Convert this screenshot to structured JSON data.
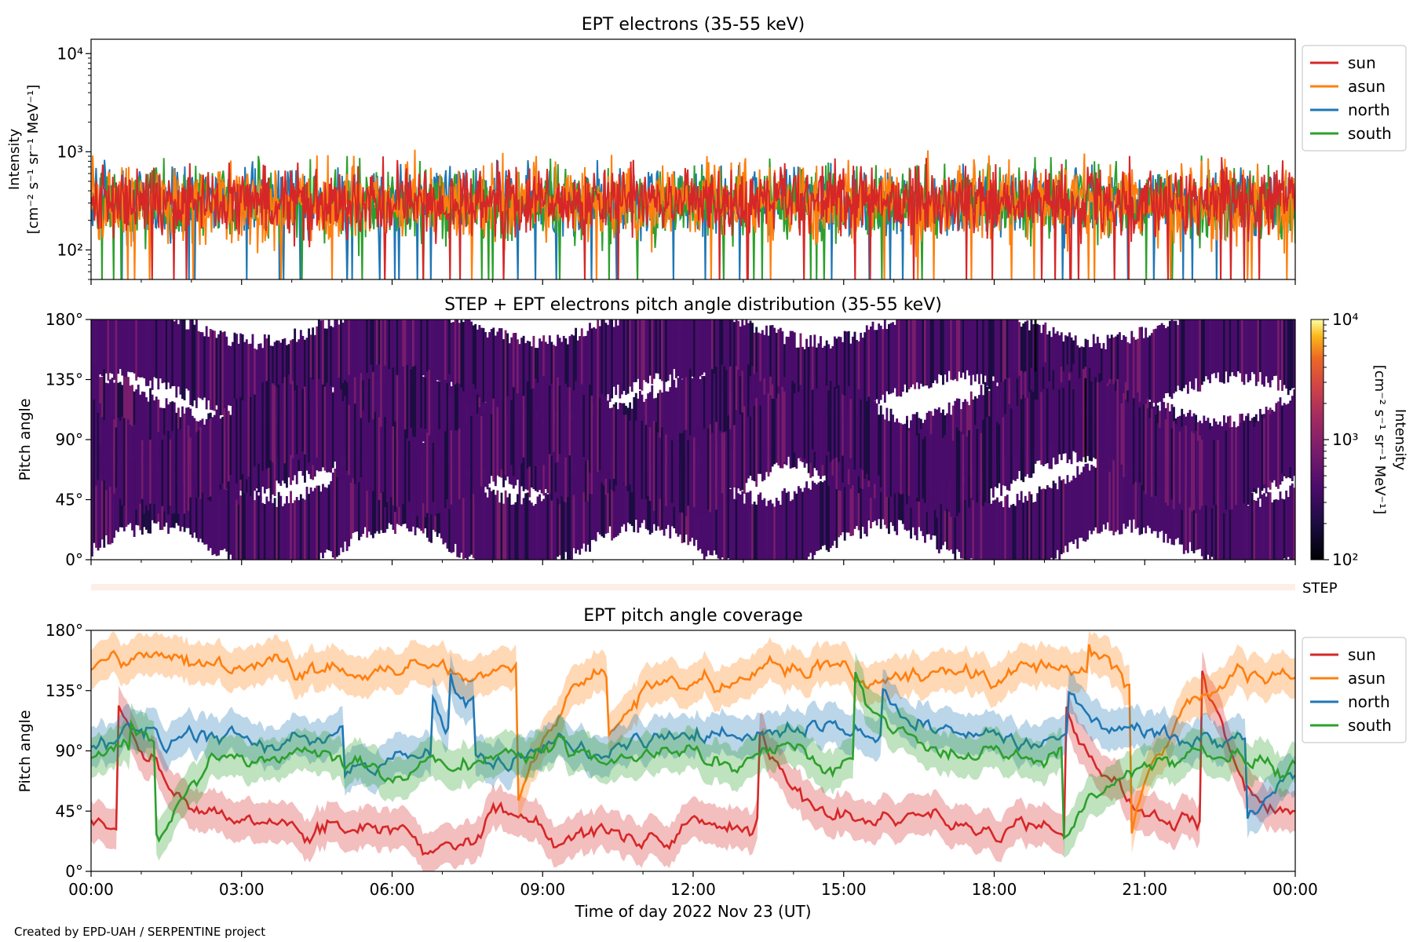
{
  "credit": "Created by EPD-UAH / SERPENTINE project",
  "colors": {
    "sun": "#d62728",
    "asun": "#ff7f0e",
    "north": "#1f77b4",
    "south": "#2ca02c"
  },
  "chart_data": [
    {
      "type": "line",
      "title": "EPT electrons (35-55 keV)",
      "ylabel_lines": [
        "Intensity",
        "[cm⁻² s⁻¹ sr⁻¹ MeV⁻¹]"
      ],
      "yscale": "log",
      "ylim": [
        50,
        14000
      ],
      "yticks": [
        {
          "value": 100,
          "label": "10²"
        },
        {
          "value": 1000,
          "label": "10³"
        },
        {
          "value": 10000,
          "label": "10⁴"
        }
      ],
      "xlim": [
        "00:00",
        "24:00"
      ],
      "legend": "outside-right",
      "series": [
        {
          "name": "sun",
          "color": "#d62728",
          "baseline": 320,
          "spread": 0.55,
          "peak": 950
        },
        {
          "name": "asun",
          "color": "#ff7f0e",
          "baseline": 300,
          "spread": 0.6,
          "peak": 1100
        },
        {
          "name": "north",
          "color": "#1f77b4",
          "baseline": 310,
          "spread": 0.55,
          "peak": 850
        },
        {
          "name": "south",
          "color": "#2ca02c",
          "baseline": 300,
          "spread": 0.6,
          "peak": 1150
        }
      ]
    },
    {
      "type": "heatmap",
      "title": "STEP + EPT electrons pitch angle distribution (35-55 keV)",
      "ylabel": "Pitch angle",
      "ylim": [
        0,
        180
      ],
      "yticks": [
        {
          "value": 0,
          "label": "0°"
        },
        {
          "value": 45,
          "label": "45°"
        },
        {
          "value": 90,
          "label": "90°"
        },
        {
          "value": 135,
          "label": "135°"
        },
        {
          "value": 180,
          "label": "180°"
        }
      ],
      "colorbar": {
        "label_lines": [
          "Intensity",
          "[cm⁻² s⁻¹ sr⁻¹ MeV⁻¹]"
        ],
        "scale": "log",
        "range": [
          100,
          10000
        ],
        "ticks": [
          {
            "value": 100,
            "label": "10²"
          },
          {
            "value": 1000,
            "label": "10³"
          },
          {
            "value": 10000,
            "label": "10⁴"
          }
        ],
        "colormap": "inferno"
      },
      "typical_intensity": 300
    },
    {
      "type": "strip",
      "label": "STEP"
    },
    {
      "type": "line",
      "title": "EPT pitch angle coverage",
      "ylabel": "Pitch angle",
      "ylim": [
        0,
        180
      ],
      "yticks": [
        {
          "value": 0,
          "label": "0°"
        },
        {
          "value": 45,
          "label": "45°"
        },
        {
          "value": 90,
          "label": "90°"
        },
        {
          "value": 135,
          "label": "135°"
        },
        {
          "value": 180,
          "label": "180°"
        }
      ],
      "xlabel": "Time of day 2022 Nov 23 (UT)",
      "xticks": [
        "00:00",
        "03:00",
        "06:00",
        "09:00",
        "12:00",
        "15:00",
        "18:00",
        "21:00",
        "00:00"
      ],
      "legend": "outside-right",
      "series": [
        {
          "name": "sun",
          "color": "#d62728",
          "mean": 35,
          "band": 15
        },
        {
          "name": "asun",
          "color": "#ff7f0e",
          "mean": 150,
          "band": 15
        },
        {
          "name": "north",
          "color": "#1f77b4",
          "mean": 95,
          "band": 15
        },
        {
          "name": "south",
          "color": "#2ca02c",
          "mean": 85,
          "band": 15
        }
      ]
    }
  ]
}
